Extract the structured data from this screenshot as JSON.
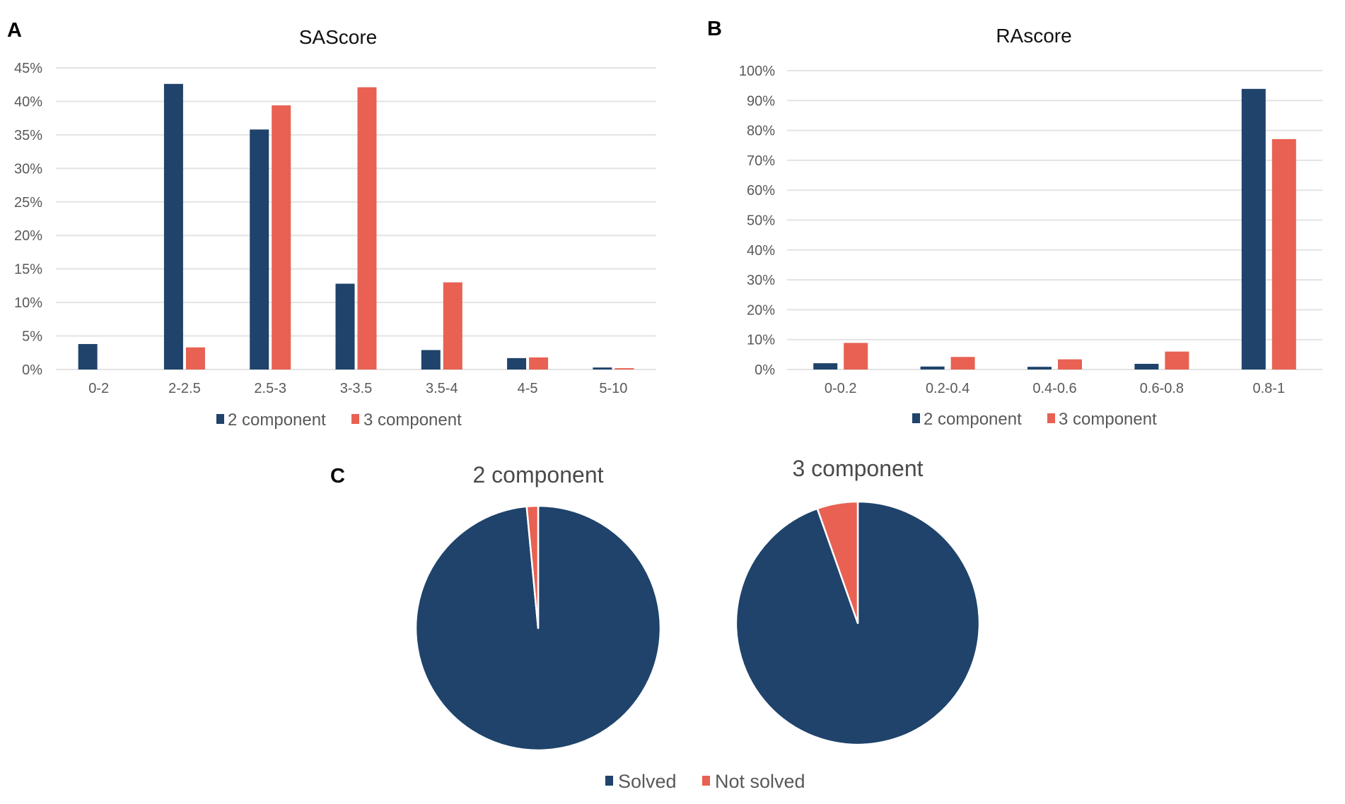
{
  "colors": {
    "series_2_component": "#1f436b",
    "series_3_component": "#e86152",
    "grid": "#e3e3e3"
  },
  "chart_data": [
    {
      "panel": "A",
      "type": "bar",
      "title": "SAScore",
      "xlabel": "",
      "ylabel": "",
      "categories": [
        "0-2",
        "2-2.5",
        "2.5-3",
        "3-3.5",
        "3.5-4",
        "4-5",
        "5-10"
      ],
      "series": [
        {
          "name": "2 component",
          "values": [
            3.8,
            42.6,
            35.8,
            12.8,
            2.9,
            1.7,
            0.3
          ]
        },
        {
          "name": "3 component",
          "values": [
            0.0,
            3.3,
            39.4,
            42.1,
            13.0,
            1.8,
            0.2
          ]
        }
      ],
      "ylim": [
        0,
        45
      ],
      "yticks": [
        "0%",
        "5%",
        "10%",
        "15%",
        "20%",
        "25%",
        "30%",
        "35%",
        "40%",
        "45%"
      ],
      "grid": true,
      "legend": "bottom"
    },
    {
      "panel": "B",
      "type": "bar",
      "title": "RAscore",
      "xlabel": "",
      "ylabel": "",
      "categories": [
        "0-0.2",
        "0.2-0.4",
        "0.4-0.6",
        "0.6-0.8",
        "0.8-1"
      ],
      "series": [
        {
          "name": "2 component",
          "values": [
            2.1,
            1.0,
            0.9,
            1.9,
            93.9
          ]
        },
        {
          "name": "3 component",
          "values": [
            8.9,
            4.2,
            3.4,
            6.0,
            77.1
          ]
        }
      ],
      "ylim": [
        0,
        100
      ],
      "yticks": [
        "0%",
        "10%",
        "20%",
        "30%",
        "40%",
        "50%",
        "60%",
        "70%",
        "80%",
        "90%",
        "100%"
      ],
      "grid": true,
      "legend": "bottom"
    },
    {
      "panel": "C",
      "type": "pie",
      "title": "2 component",
      "categories": [
        "Solved",
        "Not solved"
      ],
      "values": [
        98.5,
        1.5
      ]
    },
    {
      "panel": "C",
      "type": "pie",
      "title": "3 component",
      "categories": [
        "Solved",
        "Not solved"
      ],
      "values": [
        94.6,
        5.4
      ]
    }
  ],
  "panels": {
    "a_label": "A",
    "b_label": "B",
    "c_label": "C"
  },
  "pie_legend": [
    "Solved",
    "Not solved"
  ]
}
